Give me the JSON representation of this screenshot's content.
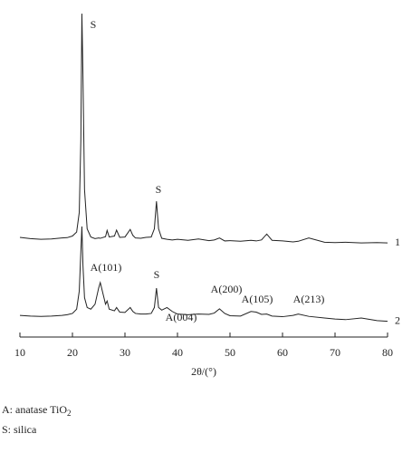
{
  "chart_data": {
    "type": "line",
    "x_label": "2θ/(°)",
    "x": [
      10,
      12,
      14,
      16,
      18,
      19,
      20,
      20.8,
      21.3,
      21.6,
      21.8,
      22,
      22.3,
      22.8,
      23.5,
      24.3,
      25,
      25.3,
      25.7,
      26.3,
      26.6,
      27,
      28,
      28.4,
      29,
      30,
      31,
      31.5,
      32,
      33,
      34,
      35,
      35.6,
      36,
      36.4,
      37,
      38,
      39,
      40,
      42,
      44,
      46,
      47,
      48,
      49,
      50,
      52,
      54,
      55,
      56,
      57,
      58,
      60,
      62,
      63,
      65,
      68,
      70,
      72,
      75,
      78,
      80
    ],
    "series": [
      {
        "name": "1",
        "color": "#222222",
        "values": [
          30.4,
          30.0,
          29.8,
          29.9,
          30.2,
          30.3,
          30.8,
          32,
          38,
          60,
          98.6,
          80,
          45,
          33,
          30.5,
          30.0,
          30.2,
          30.1,
          30.3,
          30.6,
          32.5,
          30.5,
          30.8,
          32.6,
          30.4,
          30.5,
          32.8,
          31,
          30.2,
          30.1,
          30.4,
          30.5,
          33,
          41.4,
          33,
          30.1,
          29.8,
          29.6,
          29.8,
          29.5,
          29.9,
          29.4,
          29.6,
          30.2,
          29.3,
          29.4,
          29.2,
          29.5,
          29.3,
          29.6,
          31.4,
          29.5,
          29.3,
          29.0,
          29.2,
          30.2,
          28.9,
          28.8,
          28.9,
          28.7,
          28.8,
          28.7
        ]
      },
      {
        "name": "2",
        "color": "#222222",
        "values": [
          6.6,
          6.4,
          6.3,
          6.4,
          6.6,
          6.8,
          7.2,
          8.5,
          14,
          26,
          33.7,
          22,
          12,
          9,
          8.5,
          10,
          15,
          16.6,
          14,
          10,
          11,
          8.5,
          8,
          9,
          7.6,
          7.5,
          9,
          7.8,
          7.2,
          7,
          7,
          7.2,
          9,
          14.9,
          9,
          8.2,
          9,
          7.8,
          7,
          6.8,
          7,
          6.9,
          7.3,
          8.6,
          7.2,
          6.5,
          6.4,
          7.8,
          7.6,
          6.9,
          7,
          6.4,
          6.2,
          6.6,
          7,
          6.3,
          5.8,
          5.5,
          5.3,
          5.8,
          5.0,
          4.8
        ]
      }
    ],
    "xlim": [
      10,
      80
    ],
    "xticks": [
      10,
      20,
      30,
      40,
      50,
      60,
      70,
      80
    ],
    "ylim": [
      0,
      100
    ],
    "annotations": [
      "S",
      "S",
      "A(101)",
      "S",
      "A(004)",
      "A(200)",
      "A(105)",
      "A(213)"
    ],
    "footnotes": [
      {
        "text": "A: anatase TiO",
        "sub": "2"
      },
      {
        "text": "S: silica"
      }
    ]
  }
}
